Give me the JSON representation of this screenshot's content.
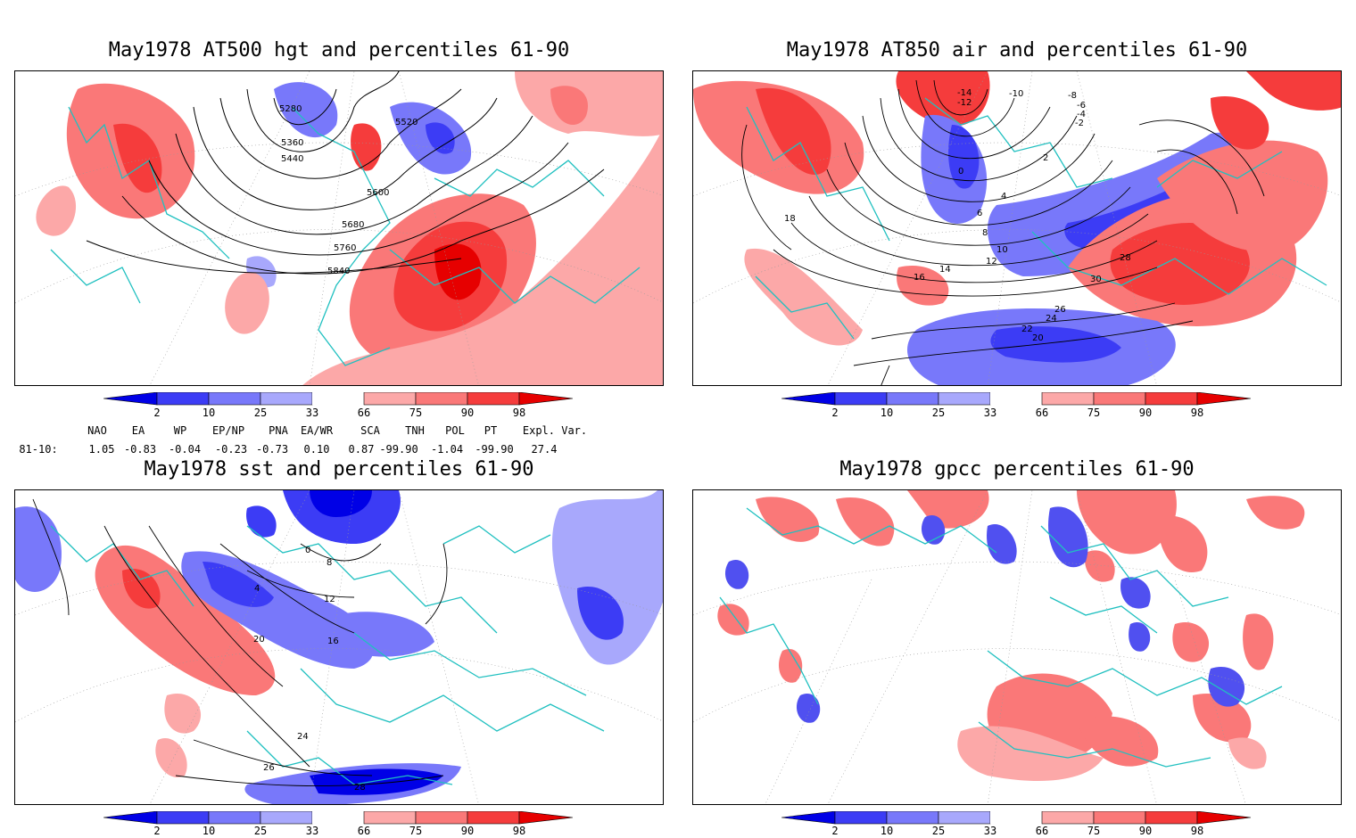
{
  "panels": [
    {
      "title": "May1978 AT500 hgt and percentiles 61-90",
      "contour_labels": [
        "5280",
        "5360",
        "5440",
        "5520",
        "5600",
        "5680",
        "5760",
        "5840"
      ]
    },
    {
      "title": "May1978 AT850 air and percentiles 61-90",
      "contour_labels": [
        "-14",
        "-12",
        "-10",
        "-8",
        "-6",
        "-4",
        "-2",
        "0",
        "2",
        "4",
        "6",
        "8",
        "10",
        "12",
        "14",
        "16",
        "18",
        "20",
        "22",
        "24",
        "26",
        "28",
        "30"
      ]
    },
    {
      "title": "May1978 sst and percentiles 61-90",
      "contour_labels": [
        "0",
        "4",
        "8",
        "12",
        "16",
        "20",
        "24",
        "26",
        "28"
      ]
    },
    {
      "title": "May1978 gpcc percentiles 61-90",
      "contour_labels": []
    }
  ],
  "colorbar": {
    "labels": [
      "2",
      "10",
      "25",
      "33",
      "66",
      "75",
      "90",
      "98"
    ],
    "colors": {
      "b1": "#0000e6",
      "b2": "#3c3cf5",
      "b3": "#7878fa",
      "b4": "#a8a8fc",
      "white": "#ffffff",
      "r1": "#fca8a8",
      "r2": "#fa7878",
      "r3": "#f53c3c",
      "r4": "#e60000"
    }
  },
  "indices": {
    "headers": [
      "NAO",
      "EA",
      "WP",
      "EP/NP",
      "PNA",
      "EA/WR",
      "SCA",
      "TNH",
      "POL",
      "PT",
      "Expl. Var."
    ],
    "row_label": "81-10:",
    "values": [
      "1.05",
      "-0.83",
      "-0.04",
      "-0.23",
      "-0.73",
      "0.10",
      "0.87",
      "-99.90",
      "-1.04",
      "-99.90",
      "27.4"
    ]
  },
  "colors": {
    "coast": "#20c0c0",
    "contour": "#000000",
    "blue": "#5050f0",
    "red": "#f04040"
  }
}
